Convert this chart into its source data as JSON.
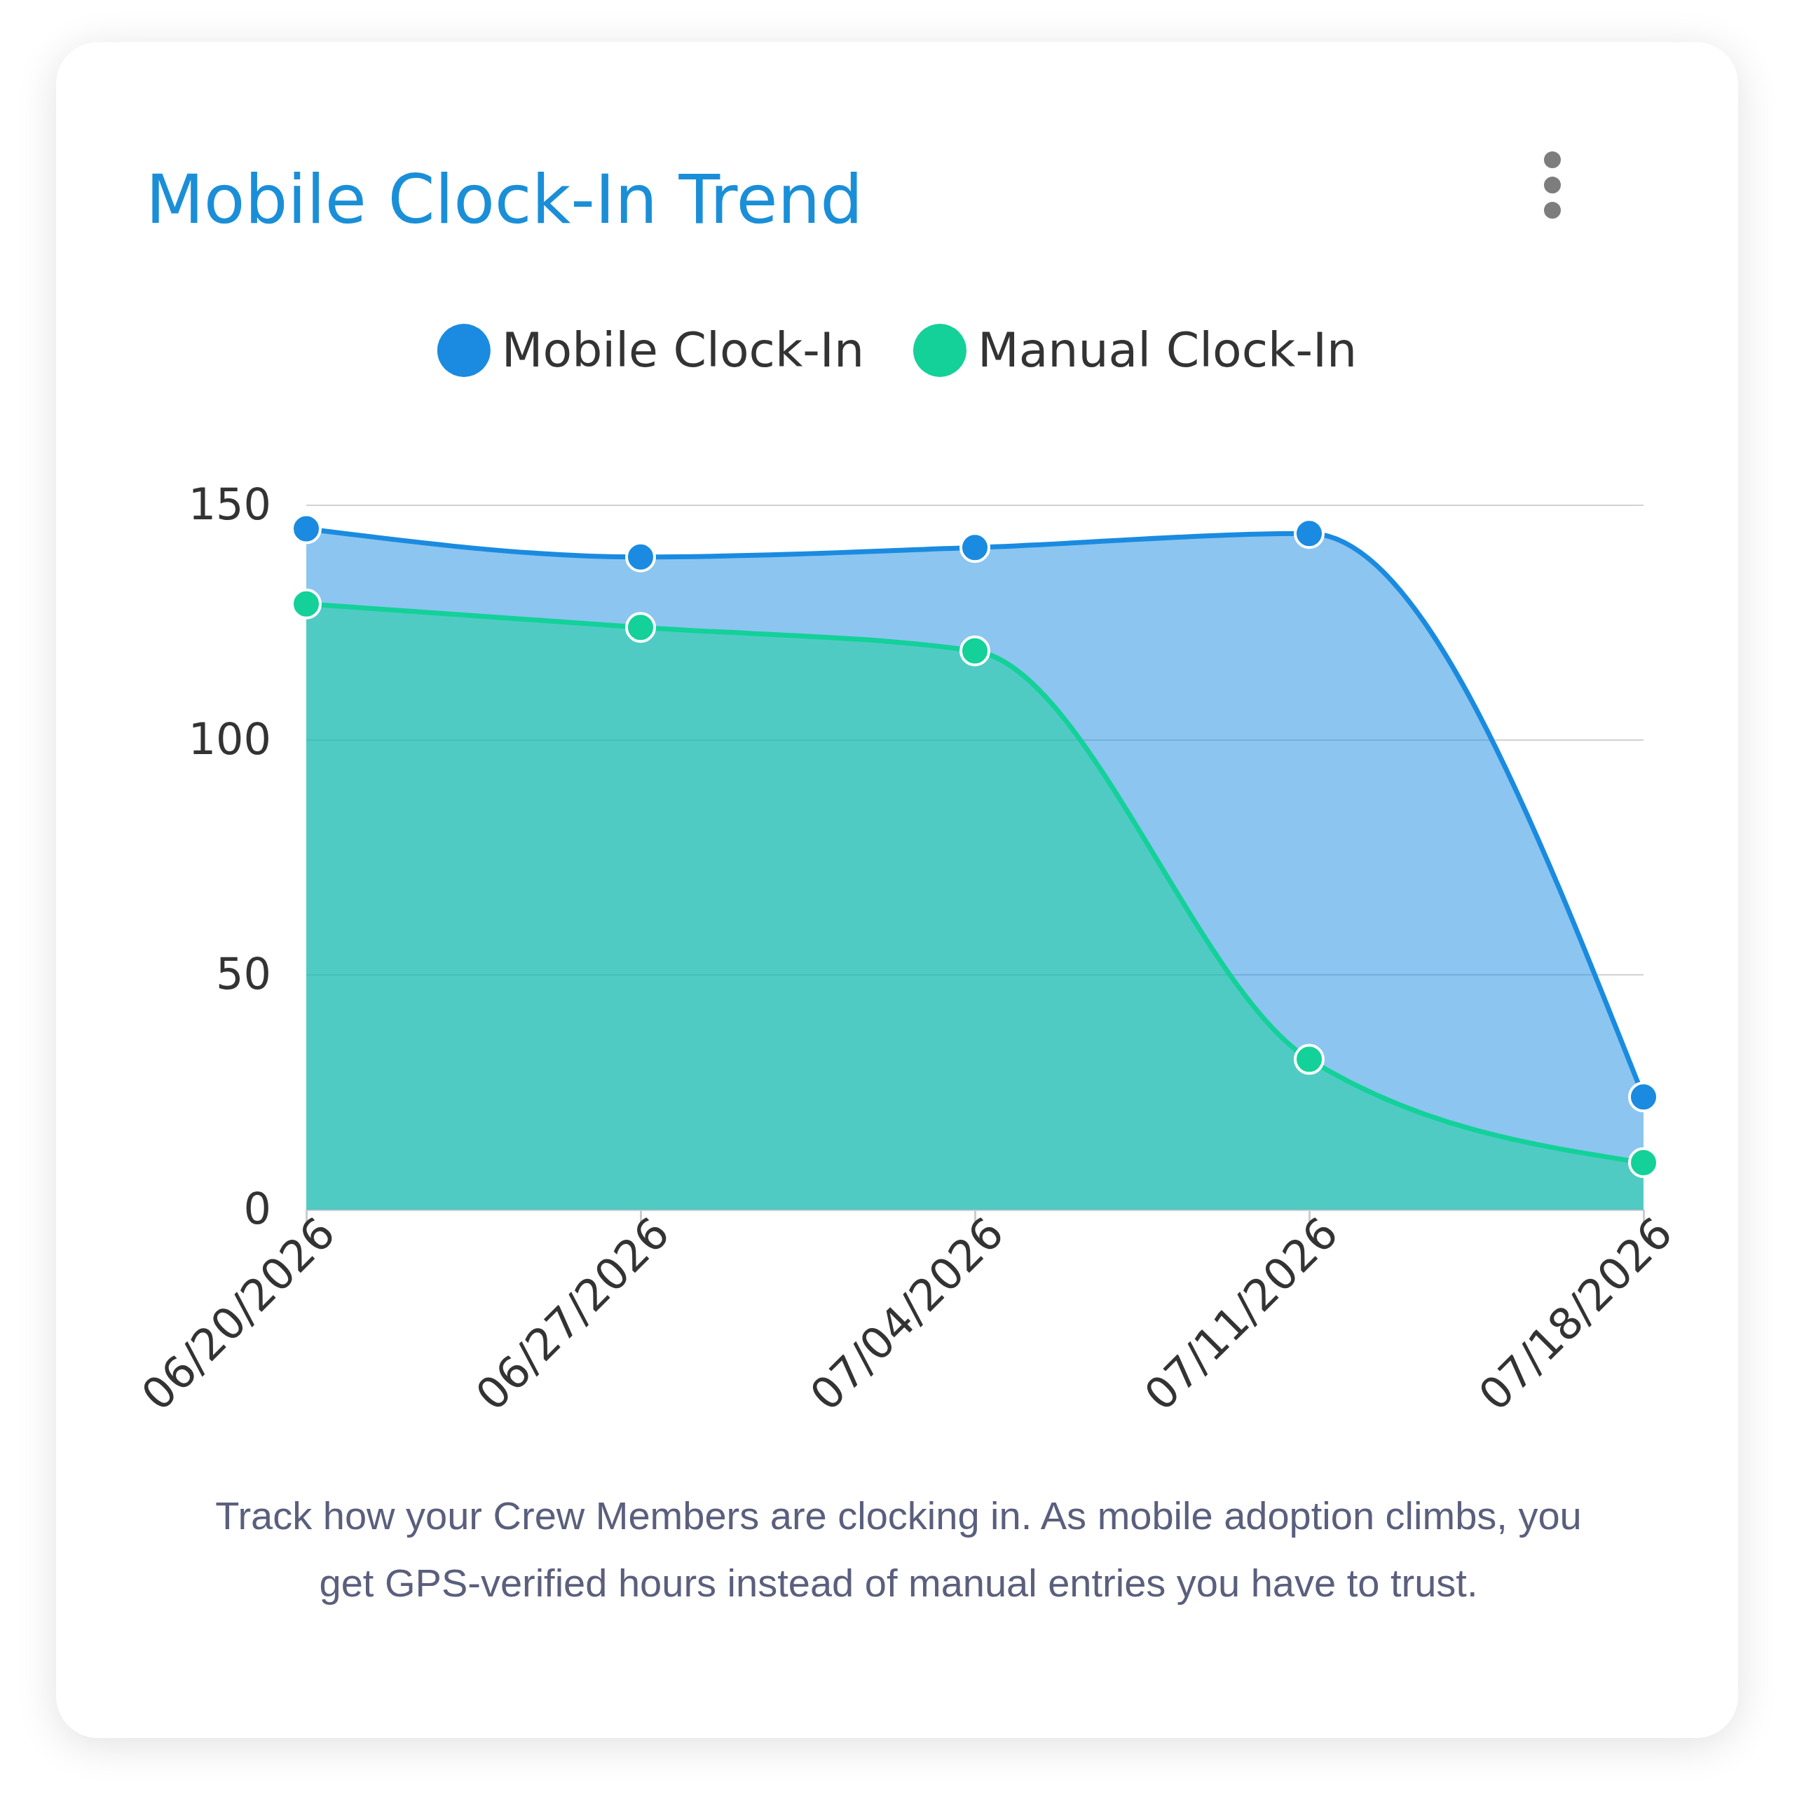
{
  "chart_data": {
    "type": "area",
    "title": "Mobile Clock-In Trend",
    "categories": [
      "06/20/2026",
      "06/27/2026",
      "07/04/2026",
      "07/11/2026",
      "07/18/2026"
    ],
    "series": [
      {
        "name": "Mobile Clock-In",
        "color": "#1a8be0",
        "values": [
          145,
          139,
          141,
          144,
          24
        ]
      },
      {
        "name": "Manual Clock-In",
        "color": "#13d199",
        "values": [
          129,
          124,
          119,
          32,
          10
        ]
      }
    ],
    "ylim": [
      0,
      150
    ],
    "yticks": [
      0,
      50,
      100,
      150
    ],
    "grid": "y",
    "legend": "top",
    "marker": "circle",
    "annotations": [
      "Track how your Crew Members are clocking in. As mobile adoption climbs, you get GPS-verified hours instead of manual entries you have to trust."
    ]
  }
}
